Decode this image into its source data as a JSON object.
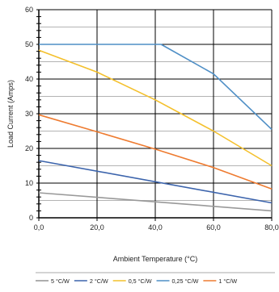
{
  "chart_data": {
    "type": "line",
    "title": "",
    "xlabel": "Ambient Temperature (°C)",
    "ylabel": "Load Current (Amps)",
    "xlim": [
      0,
      80
    ],
    "ylim": [
      0,
      60
    ],
    "x_ticks": [
      0,
      20,
      40,
      60,
      80
    ],
    "x_tick_labels": [
      "0,0",
      "20,0",
      "40,0",
      "60,0",
      "80,0"
    ],
    "y_ticks": [
      0,
      10,
      20,
      30,
      40,
      50,
      60
    ],
    "y_tick_labels": [
      "0",
      "10",
      "20",
      "30",
      "40",
      "50",
      "60"
    ],
    "grid": true,
    "legend_position": "bottom",
    "series": [
      {
        "name": "5 °C/W",
        "color": "#999999",
        "x": [
          0,
          80
        ],
        "y": [
          7.2,
          2.0
        ]
      },
      {
        "name": "2 °C/W",
        "color": "#3c64ac",
        "x": [
          0,
          80
        ],
        "y": [
          16.5,
          4.3
        ]
      },
      {
        "name": "0,5 °C/W",
        "color": "#f4c02c",
        "x": [
          0,
          20,
          40,
          60,
          80
        ],
        "y": [
          48.3,
          42.0,
          34.0,
          25.0,
          15.0
        ]
      },
      {
        "name": "0,25 °C/W",
        "color": "#4f8fc6",
        "x": [
          0,
          42,
          60,
          80
        ],
        "y": [
          50.0,
          50.0,
          41.5,
          25.5
        ]
      },
      {
        "name": "1 °C/W",
        "color": "#ee7b30",
        "x": [
          0,
          20,
          40,
          60,
          80
        ],
        "y": [
          29.7,
          24.8,
          19.8,
          14.5,
          8.3
        ]
      }
    ]
  }
}
